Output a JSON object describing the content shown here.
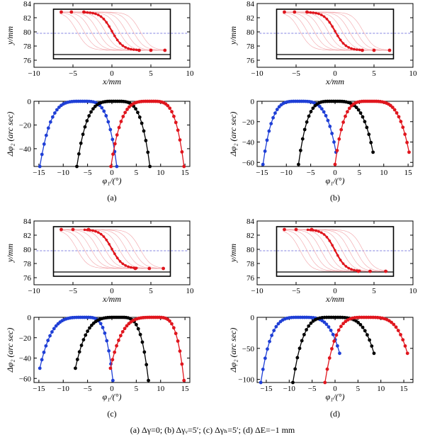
{
  "caption": "(a) Δγ=0; (b) Δγᵥ=5′; (c) Δγₕ=5′; (d) ΔE=−1 mm",
  "colors": {
    "blue": "#1f3fd6",
    "black": "#000000",
    "red": "#e0161e",
    "pink": "#f2a3a8",
    "dash": "#5b5bd6"
  },
  "panels": [
    {
      "label": "(a)",
      "profile": {
        "type": "line",
        "xlabel": "x/mm",
        "ylabel": "y/mm",
        "xlim": [
          -10,
          10
        ],
        "ylim": [
          75,
          84
        ],
        "xticks": [
          "−10",
          "−5",
          "0",
          "5",
          "10"
        ],
        "yticks": [
          "76",
          "78",
          "80",
          "82",
          "84"
        ],
        "dashed_y": 79.8,
        "box": {
          "x": [
            -7.5,
            7.5
          ],
          "y": [
            76.2,
            83.2
          ],
          "inner_y": 76.8
        },
        "path_x": [
          -6.7,
          7.0
        ],
        "y_top": 82.8,
        "y_bottom": 77.4,
        "markers_left": [
          -6.5,
          -5.2,
          -3.6
        ],
        "markers_right": [
          3.5,
          5.0,
          6.8
        ]
      },
      "chart_data": {
        "type": "scatter",
        "xlabel": "φ₁/(°)",
        "ylabel": "Δφ₂ (arc sec)",
        "xlim": [
          -16,
          16
        ],
        "ylim": [
          -55,
          0
        ],
        "xticks": [
          "−15",
          "−10",
          "−5",
          "0",
          "5",
          "10",
          "15"
        ],
        "yticks": [
          "0",
          "−20",
          "−40"
        ],
        "series": [
          {
            "color": "blue",
            "x_range": [
              -14.8,
              1.0
            ],
            "x_peak": -6.0,
            "width_left": 8.8,
            "width_right": 7.0,
            "min": -55
          },
          {
            "color": "black",
            "x_range": [
              -7.2,
              7.8
            ],
            "x_peak": 0.8,
            "width_left": 8.0,
            "width_right": 7.0,
            "min": -55
          },
          {
            "color": "red",
            "x_range": [
              -0.2,
              14.8
            ],
            "x_peak": 8.0,
            "width_left": 8.2,
            "width_right": 6.8,
            "min": -55
          }
        ]
      }
    },
    {
      "label": "(b)",
      "profile": {
        "type": "line",
        "xlabel": "x/mm",
        "ylabel": "y/mm",
        "xlim": [
          -10,
          10
        ],
        "ylim": [
          75,
          84
        ],
        "xticks": [
          "−10",
          "−5",
          "0",
          "5",
          "10"
        ],
        "yticks": [
          "76",
          "78",
          "80",
          "82",
          "84"
        ],
        "dashed_y": 79.8,
        "box": {
          "x": [
            -7.5,
            7.5
          ],
          "y": [
            76.2,
            83.2
          ],
          "inner_y": 76.8
        },
        "path_x": [
          -6.7,
          7.0
        ],
        "y_top": 82.8,
        "y_bottom": 77.4,
        "markers_left": [
          -6.5,
          -5.2,
          -3.6
        ],
        "markers_right": [
          3.5,
          5.0,
          7.0
        ]
      },
      "chart_data": {
        "type": "scatter",
        "xlabel": "φ₁/(°)",
        "ylabel": "Δφ₂ (arc sec)",
        "xlim": [
          -16,
          16
        ],
        "ylim": [
          -64,
          0
        ],
        "xticks": [
          "−15",
          "−10",
          "−5",
          "0",
          "5",
          "10",
          "15"
        ],
        "yticks": [
          "0",
          "−20",
          "−40",
          "−60"
        ],
        "series": [
          {
            "color": "blue",
            "x_range": [
              -14.8,
              0.2
            ],
            "x_peak": -7.5,
            "width_left": 7.3,
            "width_right": 7.7,
            "min_left": -62,
            "min_right": -50
          },
          {
            "color": "black",
            "x_range": [
              -7.5,
              7.8
            ],
            "x_peak": -0.5,
            "width_left": 7.0,
            "width_right": 8.3,
            "min_left": -62,
            "min_right": -50
          },
          {
            "color": "red",
            "x_range": [
              0.0,
              15.2
            ],
            "x_peak": 7.0,
            "width_left": 7.0,
            "width_right": 8.2,
            "min_left": -62,
            "min_right": -50
          }
        ]
      }
    },
    {
      "label": "(c)",
      "profile": {
        "type": "line",
        "xlabel": "x/mm",
        "ylabel": "y/mm",
        "xlim": [
          -10,
          10
        ],
        "ylim": [
          75,
          84
        ],
        "xticks": [
          "−10",
          "−5",
          "0",
          "5",
          "10"
        ],
        "yticks": [
          "76",
          "78",
          "80",
          "82",
          "84"
        ],
        "dashed_y": 79.8,
        "box": {
          "x": [
            -7.5,
            7.5
          ],
          "y": [
            76.2,
            83.2
          ],
          "inner_y": 76.8
        },
        "path_x": [
          -6.7,
          6.8
        ],
        "y_top": 82.8,
        "y_bottom": 77.3,
        "markers_left": [
          -6.5,
          -5.0,
          -3.0
        ],
        "markers_right": [
          3.0,
          4.8,
          6.6
        ]
      },
      "chart_data": {
        "type": "scatter",
        "xlabel": "φ₁/(°)",
        "ylabel": "Δφ₂ (arc sec)",
        "xlim": [
          -16,
          16
        ],
        "ylim": [
          -64,
          0
        ],
        "xticks": [
          "−15",
          "−10",
          "−5",
          "0",
          "5",
          "10",
          "15"
        ],
        "yticks": [
          "0",
          "−20",
          "−40",
          "−60"
        ],
        "series": [
          {
            "color": "blue",
            "x_range": [
              -14.8,
              0.2
            ],
            "x_peak": -5.5,
            "width_left": 9.3,
            "width_right": 5.7,
            "min_left": -50,
            "min_right": -62
          },
          {
            "color": "black",
            "x_range": [
              -7.5,
              7.5
            ],
            "x_peak": 1.5,
            "width_left": 9.0,
            "width_right": 6.0,
            "min_left": -50,
            "min_right": -62
          },
          {
            "color": "red",
            "x_range": [
              -0.3,
              14.8
            ],
            "x_peak": 9.0,
            "width_left": 9.3,
            "width_right": 5.8,
            "min_left": -50,
            "min_right": -62
          }
        ]
      }
    },
    {
      "label": "(d)",
      "profile": {
        "type": "line",
        "xlabel": "x/mm",
        "ylabel": "y/mm",
        "xlim": [
          -10,
          10
        ],
        "ylim": [
          75,
          84
        ],
        "xticks": [
          "−10",
          "−5",
          "0",
          "5",
          "10"
        ],
        "yticks": [
          "76",
          "78",
          "80",
          "82",
          "84"
        ],
        "dashed_y": 79.8,
        "box": {
          "x": [
            -7.5,
            7.5
          ],
          "y": [
            76.2,
            83.2
          ],
          "inner_y": 76.8
        },
        "path_x": [
          -6.7,
          7.0
        ],
        "y_top": 82.8,
        "y_bottom": 76.9,
        "markers_left": [
          -6.5,
          -5.0,
          -3.0
        ],
        "markers_right": [
          3.0,
          4.5,
          6.5
        ]
      },
      "chart_data": {
        "type": "scatter",
        "xlabel": "φ₁/(°)",
        "ylabel": "Δφ₂ (arc sec)",
        "xlim": [
          -17,
          17
        ],
        "ylim": [
          -105,
          0
        ],
        "xticks": [
          "−15",
          "−10",
          "−5",
          "0",
          "5",
          "10",
          "15"
        ],
        "yticks": [
          "0",
          "−50",
          "−100"
        ],
        "series": [
          {
            "color": "blue",
            "x_range": [
              -16.2,
              1.0
            ],
            "x_peak": -7.5,
            "width_left": 8.7,
            "width_right": 8.5,
            "min_left": -105,
            "min_right": -58
          },
          {
            "color": "black",
            "x_range": [
              -9.2,
              8.5
            ],
            "x_peak": -0.5,
            "width_left": 8.7,
            "width_right": 9.0,
            "min_left": -105,
            "min_right": -58
          },
          {
            "color": "red",
            "x_range": [
              -2.2,
              15.8
            ],
            "x_peak": 6.8,
            "width_left": 9.0,
            "width_right": 9.0,
            "min_left": -105,
            "min_right": -58
          }
        ]
      }
    }
  ]
}
